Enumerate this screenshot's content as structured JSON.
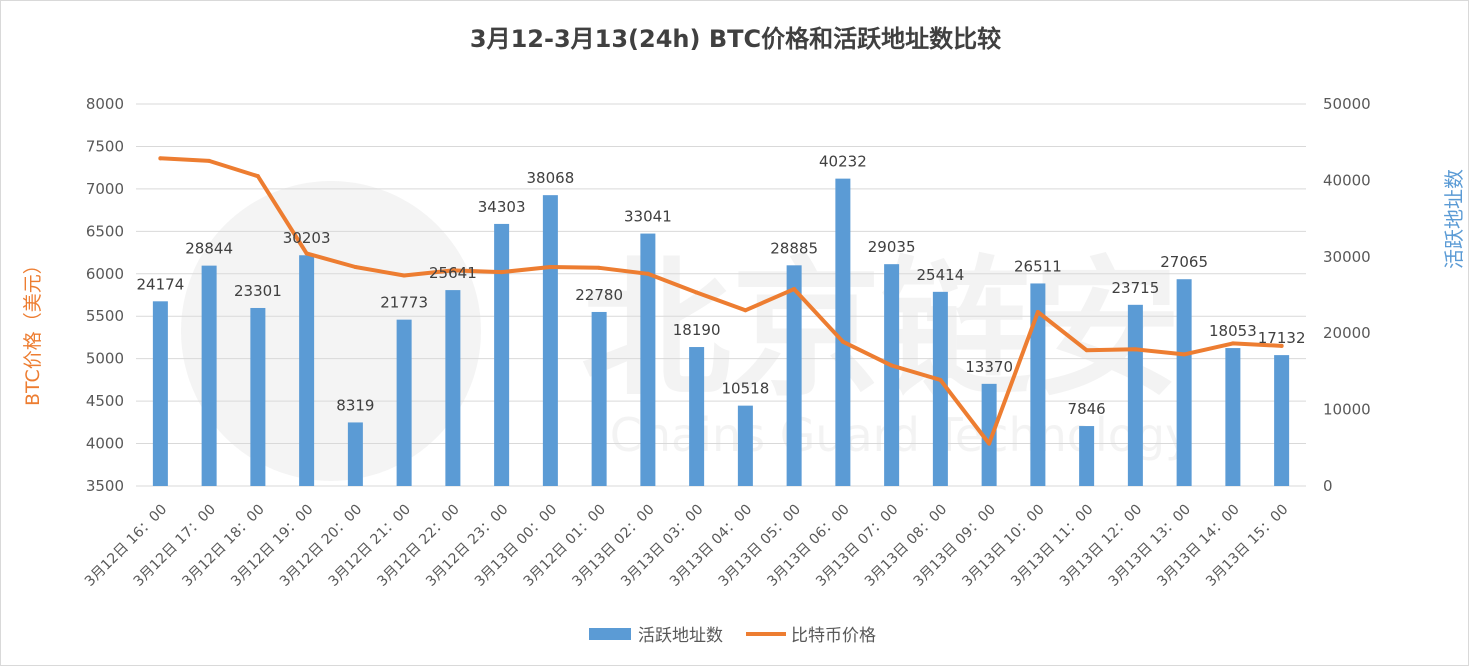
{
  "chart_data": {
    "type": "bar+line",
    "title": "3月12-3月13(24h) BTC价格和活跃地址数比较",
    "categories": [
      "3月12日 16：00",
      "3月12日 17：00",
      "3月12日 18：00",
      "3月12日 19：00",
      "3月12日 20：00",
      "3月12日 21：00",
      "3月12日 22：00",
      "3月12日 23：00",
      "3月13日 00：00",
      "3月12日 01：00",
      "3月13日 02：00",
      "3月13日 03：00",
      "3月13日 04：00",
      "3月13日 05：00",
      "3月13日 06：00",
      "3月13日 07：00",
      "3月13日 08：00",
      "3月13日 09：00",
      "3月13日 10：00",
      "3月13日 11：00",
      "3月13日 12：00",
      "3月13日 13：00",
      "3月13日 14：00",
      "3月13日 15：00"
    ],
    "series": [
      {
        "name": "活跃地址数",
        "type": "bar",
        "axis": "right",
        "color": "#5b9bd5",
        "values": [
          24174,
          28844,
          23301,
          30203,
          8319,
          21773,
          25641,
          34303,
          38068,
          22780,
          33041,
          18190,
          10518,
          28885,
          40232,
          29035,
          25414,
          13370,
          26511,
          7846,
          23715,
          27065,
          18053,
          17132
        ]
      },
      {
        "name": "比特币价格",
        "type": "line",
        "axis": "left",
        "color": "#ed7d31",
        "values": [
          7360,
          7330,
          7150,
          6240,
          6080,
          5980,
          6040,
          6020,
          6080,
          6070,
          6000,
          5780,
          5570,
          5820,
          5200,
          4920,
          4750,
          4000,
          5550,
          5100,
          5110,
          5050,
          5180,
          5150
        ]
      }
    ],
    "ylabel_left": "BTC价格（美元）",
    "ylabel_right": "活跃地址数",
    "ylim_left": [
      3500,
      8000
    ],
    "yticks_left": [
      "8000",
      "7500",
      "7000",
      "6500",
      "6000",
      "5500",
      "5000",
      "4500",
      "4000",
      "3500"
    ],
    "ylim_right": [
      0,
      50000
    ],
    "yticks_right": [
      "50000",
      "40000",
      "30000",
      "20000",
      "10000",
      "0"
    ],
    "grid": true,
    "legend_position": "bottom-center",
    "watermark_text": "北京链安 Chains Guard Technology"
  }
}
